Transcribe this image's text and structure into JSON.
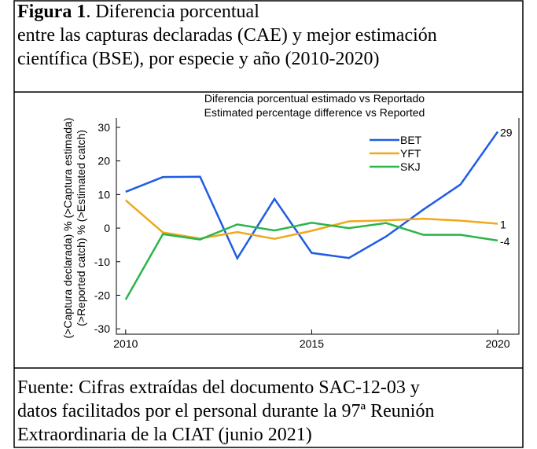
{
  "caption": {
    "label": "Figura 1",
    "lines": [
      ". Diferencia porcentual",
      "entre las capturas declaradas (CAE) y mejor estimación",
      "científica (BSE), por especie y año (2010-2020)"
    ]
  },
  "chart_data": {
    "type": "line",
    "title": "Diferencia porcentual estimado vs Reportado",
    "subtitle": "Estimated percentage difference vs Reported",
    "y_label": [
      "(>Captura declarada) % (>Captura estimada)",
      "(>Reported catch) % (>Estimated catch)"
    ],
    "x": [
      2010,
      2011,
      2012,
      2013,
      2014,
      2015,
      2016,
      2017,
      2018,
      2019,
      2020
    ],
    "series": [
      {
        "name": "BET",
        "color": "#1f5ce6",
        "values": [
          10.8,
          15.2,
          15.3,
          -9,
          8.7,
          -7.4,
          -8.9,
          -2.5,
          5.5,
          13,
          28.7
        ],
        "end_label": "29"
      },
      {
        "name": "YFT",
        "color": "#f0a81c",
        "values": [
          8.3,
          -1.3,
          -3.1,
          -1.2,
          -3.2,
          -0.8,
          2,
          2.3,
          2.8,
          2.2,
          1.3
        ],
        "end_label": "1"
      },
      {
        "name": "SKJ",
        "color": "#2bb54a",
        "values": [
          -21.3,
          -1.8,
          -3.4,
          1.1,
          -0.7,
          1.6,
          0,
          1.5,
          -2,
          -2,
          -3.7
        ],
        "end_label": "-4"
      }
    ],
    "xlim": [
      2009.75,
      2020.57
    ],
    "ylim": [
      -31.6,
      32.8
    ],
    "xticks": [
      2010,
      2015,
      2020
    ],
    "yticks": [
      -30,
      -20,
      -10,
      0,
      10,
      20,
      30
    ],
    "legend": "top-right"
  },
  "source": [
    "Fuente: Cifras extraídas  del  documento SAC-12-03  y",
    "datos facilitados por el personal durante la 97ª Reunión",
    "Extraordinaria de la CIAT (junio 2021)"
  ]
}
